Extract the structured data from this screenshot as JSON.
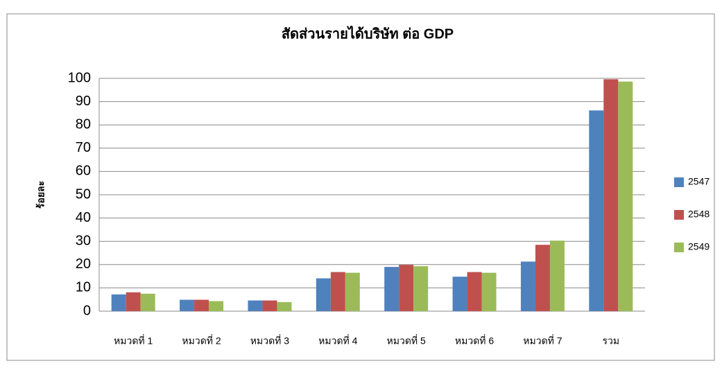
{
  "chart_data": {
    "type": "bar",
    "title": "สัดส่วนรายได้บริษัท ต่อ GDP",
    "y_label": "ร้อยละ",
    "categories": [
      "หมวดที่ 1",
      "หมวดที่ 2",
      "หมวดที่ 3",
      "หมวดที่ 4",
      "หมวดที่ 5",
      "หมวดที่ 6",
      "หมวดที่ 7",
      "รวม"
    ],
    "series": [
      {
        "name": "2547",
        "color": "#4f81bd",
        "values": [
          7.2,
          4.9,
          4.6,
          14.1,
          19.0,
          14.8,
          21.3,
          86.2
        ]
      },
      {
        "name": "2548",
        "color": "#c0504d",
        "values": [
          8.1,
          4.9,
          4.6,
          16.8,
          19.9,
          16.8,
          28.5,
          99.6
        ]
      },
      {
        "name": "2549",
        "color": "#9bbb59",
        "values": [
          7.5,
          4.3,
          3.9,
          16.5,
          19.3,
          16.5,
          30.3,
          98.6
        ]
      }
    ],
    "ylim": [
      0,
      100
    ],
    "yticks": [
      0,
      10,
      20,
      30,
      40,
      50,
      60,
      70,
      80,
      90,
      100
    ],
    "grid": true,
    "legend": "right"
  }
}
